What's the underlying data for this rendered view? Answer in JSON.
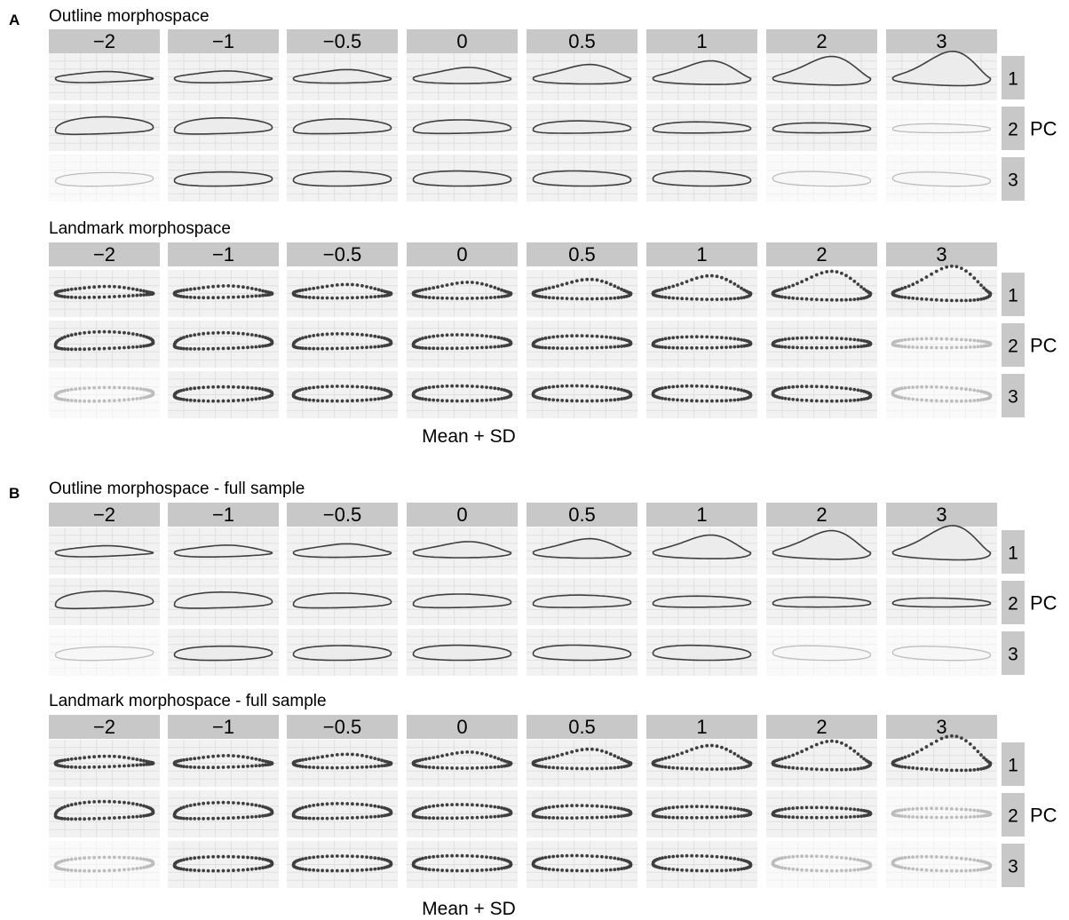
{
  "chart_data": {
    "type": "shape-morphospace-grid",
    "panels": [
      {
        "letter": "A",
        "sections": [
          {
            "title": "Outline morphospace",
            "kind": "outline"
          },
          {
            "title": "Landmark morphospace",
            "kind": "landmark"
          }
        ],
        "xlabel": "Mean + SD"
      },
      {
        "letter": "B",
        "sections": [
          {
            "title": "Outline morphospace - full sample",
            "kind": "outline"
          },
          {
            "title": "Landmark morphospace - full sample",
            "kind": "landmark"
          }
        ],
        "xlabel": "Mean + SD"
      }
    ],
    "sd_values": [
      "−2",
      "−1",
      "−0.5",
      "0",
      "0.5",
      "1",
      "2",
      "3"
    ],
    "pc_rows": [
      "1",
      "2",
      "3"
    ],
    "facet_label": "PC",
    "faded_cells": {
      "A.0": [
        [
          2,
          7
        ],
        [
          3,
          0
        ],
        [
          3,
          6
        ],
        [
          3,
          7
        ]
      ],
      "A.1": [
        [
          2,
          7
        ],
        [
          3,
          0
        ],
        [
          3,
          7
        ]
      ],
      "B.0": [
        [
          3,
          0
        ],
        [
          3,
          6
        ],
        [
          3,
          7
        ]
      ],
      "B.1": [
        [
          2,
          7
        ],
        [
          3,
          0
        ],
        [
          3,
          6
        ],
        [
          3,
          7
        ]
      ]
    },
    "colors": {
      "strip": "#c8c8c8",
      "grid": "#e0e0e0",
      "outline": "#3f3f3f",
      "fill": "#ececec",
      "faded": "#bdbdbd"
    }
  }
}
